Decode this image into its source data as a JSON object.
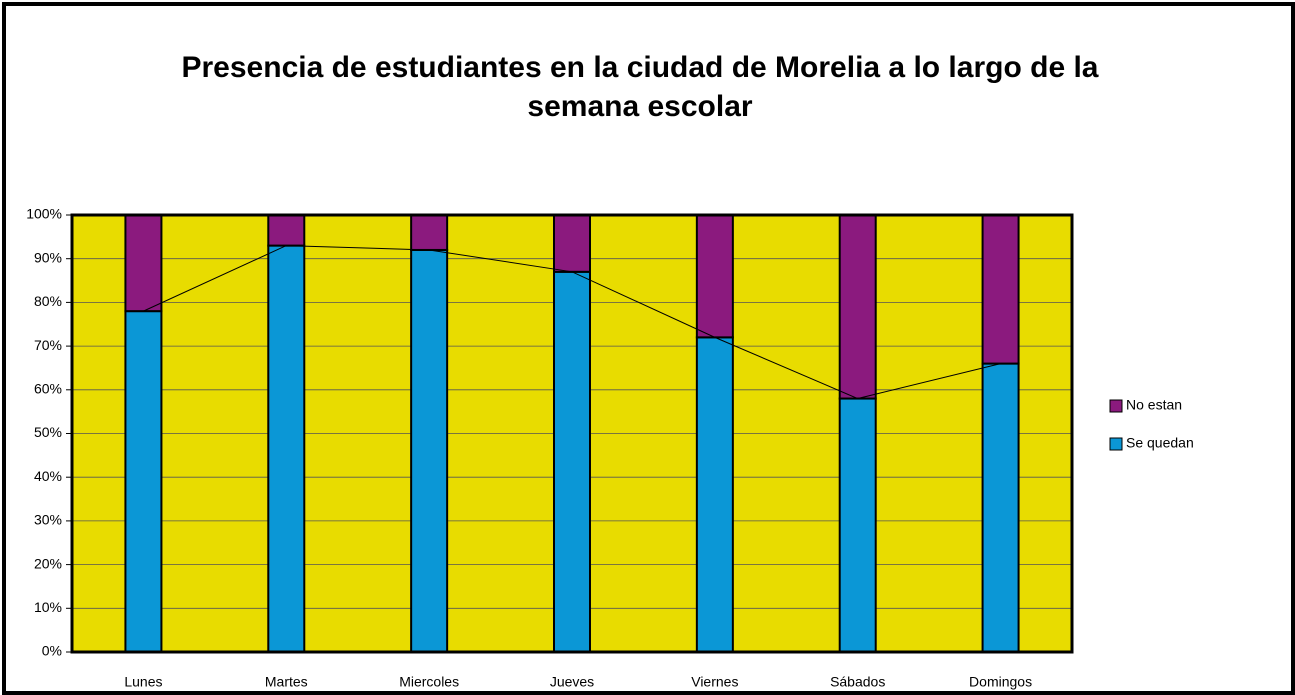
{
  "chart_data": {
    "type": "stacked_bar",
    "title": "Presencia de estudiantes en la ciudad de Morelia a lo largo de la semana escolar",
    "categories": [
      "Lunes",
      "Martes",
      "Miercoles",
      "Jueves",
      "Viernes",
      "Sábados",
      "Domingos"
    ],
    "series": [
      {
        "name": "Se quedan",
        "color": "#0b97d6",
        "values": [
          78,
          93,
          92,
          87,
          72,
          58,
          66
        ]
      },
      {
        "name": "No estan",
        "color": "#8b1a7e",
        "values": [
          22,
          7,
          8,
          13,
          28,
          42,
          34
        ]
      }
    ],
    "ylim": [
      0,
      100
    ],
    "yticks": [
      {
        "value": 0,
        "label": "0%"
      },
      {
        "value": 10,
        "label": "10%"
      },
      {
        "value": 20,
        "label": "20%"
      },
      {
        "value": 30,
        "label": "30%"
      },
      {
        "value": 40,
        "label": "40%"
      },
      {
        "value": 50,
        "label": "50%"
      },
      {
        "value": 60,
        "label": "60%"
      },
      {
        "value": 70,
        "label": "70%"
      },
      {
        "value": 80,
        "label": "80%"
      },
      {
        "value": 90,
        "label": "90%"
      },
      {
        "value": 100,
        "label": "100%"
      }
    ],
    "grid": true,
    "background": "#e8dc00",
    "legend": "right"
  }
}
